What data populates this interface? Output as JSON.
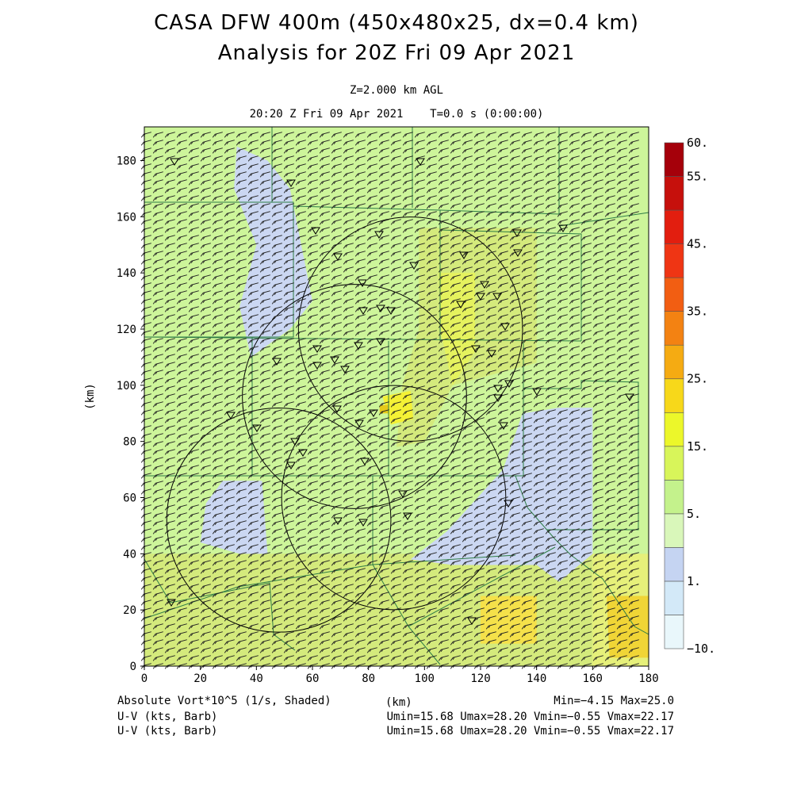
{
  "header": {
    "title_line1": "CASA DFW 400m (450x480x25, dx=0.4 km)",
    "title_line2": "Analysis for 20Z Fri 09 Apr 2021",
    "level": "Z=2.000 km AGL",
    "valid_time": "20:20 Z Fri 09 Apr 2021    T=0.0 s (0:00:00)"
  },
  "map": {
    "x_axis_label": "(km)",
    "y_axis_label": "(km)",
    "x_range": [
      0,
      180
    ],
    "y_range": [
      0,
      192
    ],
    "x_ticks": [
      "0",
      "20",
      "40",
      "60",
      "80",
      "100",
      "120",
      "140",
      "160",
      "180"
    ],
    "y_ticks": [
      "0",
      "20",
      "40",
      "60",
      "80",
      "100",
      "120",
      "140",
      "160",
      "180"
    ],
    "background_color": "#cdf59a",
    "radar_rings_km": [
      {
        "cx": 95,
        "cy": 120,
        "r": 40
      },
      {
        "cx": 75,
        "cy": 96,
        "r": 40
      },
      {
        "cx": 89,
        "cy": 60,
        "r": 40
      },
      {
        "cx": 48,
        "cy": 52,
        "r": 40
      }
    ],
    "shading_regions": [
      {
        "color": "#d4ea7c",
        "points": [
          [
            98,
            156
          ],
          [
            140,
            156
          ],
          [
            140,
            108
          ],
          [
            110,
            100
          ],
          [
            100,
            80
          ],
          [
            90,
            78
          ],
          [
            92,
            100
          ],
          [
            98,
            120
          ]
        ]
      },
      {
        "color": "#e5f25e",
        "points": [
          [
            105,
            140
          ],
          [
            118,
            140
          ],
          [
            118,
            112
          ],
          [
            110,
            100
          ],
          [
            106,
            118
          ]
        ]
      },
      {
        "color": "#f4f135",
        "points": [
          [
            85,
            96
          ],
          [
            95,
            98
          ],
          [
            96,
            88
          ],
          [
            88,
            86
          ]
        ]
      },
      {
        "color": "#e6c91a",
        "points": [
          [
            84,
            93
          ],
          [
            87,
            93
          ],
          [
            87,
            90
          ],
          [
            84,
            90
          ]
        ]
      },
      {
        "color": "#d4ea7c",
        "points": [
          [
            0,
            40
          ],
          [
            180,
            40
          ],
          [
            180,
            0
          ],
          [
            0,
            0
          ]
        ]
      },
      {
        "color": "#cbd7f2",
        "points": [
          [
            33,
            185
          ],
          [
            44,
            180
          ],
          [
            52,
            170
          ],
          [
            56,
            150
          ],
          [
            60,
            130
          ],
          [
            52,
            120
          ],
          [
            38,
            110
          ],
          [
            34,
            128
          ],
          [
            40,
            150
          ],
          [
            32,
            170
          ]
        ]
      },
      {
        "color": "#cbd7f2",
        "points": [
          [
            148,
            92
          ],
          [
            160,
            92
          ],
          [
            160,
            40
          ],
          [
            148,
            30
          ],
          [
            140,
            36
          ],
          [
            110,
            36
          ],
          [
            95,
            38
          ],
          [
            108,
            48
          ],
          [
            128,
            70
          ],
          [
            135,
            90
          ]
        ]
      },
      {
        "color": "#cbd7f2",
        "points": [
          [
            28,
            66
          ],
          [
            42,
            66
          ],
          [
            44,
            40
          ],
          [
            34,
            40
          ],
          [
            20,
            44
          ],
          [
            22,
            58
          ]
        ]
      },
      {
        "color": "#e6f07a",
        "points": [
          [
            160,
            40
          ],
          [
            180,
            40
          ],
          [
            180,
            0
          ],
          [
            160,
            0
          ]
        ]
      },
      {
        "color": "#f0d536",
        "points": [
          [
            165,
            25
          ],
          [
            180,
            25
          ],
          [
            180,
            3
          ],
          [
            166,
            3
          ]
        ]
      },
      {
        "color": "#f5e14a",
        "points": [
          [
            120,
            25
          ],
          [
            140,
            25
          ],
          [
            140,
            8
          ],
          [
            120,
            8
          ]
        ]
      }
    ],
    "wind_barb_direction_deg": 255,
    "colorbar": {
      "colors": [
        "#e9f7fb",
        "#d3e9f8",
        "#c5d4f2",
        "#d9f7ba",
        "#c4f28c",
        "#d8f55a",
        "#ecf72a",
        "#f7d81a",
        "#f5ab12",
        "#f38212",
        "#f25e12",
        "#ef3514",
        "#e21e0f",
        "#c6100c",
        "#a5000a"
      ],
      "labels": [
        {
          "text": "60.",
          "index": 15
        },
        {
          "text": "55.",
          "index": 14
        },
        {
          "text": "45.",
          "index": 12
        },
        {
          "text": "35.",
          "index": 10
        },
        {
          "text": "25.",
          "index": 8
        },
        {
          "text": "15.",
          "index": 6
        },
        {
          "text": "5.",
          "index": 4
        },
        {
          "text": "1.",
          "index": 2
        },
        {
          "text": "−10.",
          "index": 0
        }
      ]
    }
  },
  "footer": {
    "left1": "Absolute Vort*10^5 (1/s, Shaded)",
    "left2": "U-V (kts, Barb)",
    "left3": "U-V (kts, Barb)",
    "center": "(km)",
    "right1": "Min=−4.15 Max=25.0",
    "right2": "Umin=15.68 Umax=28.20 Vmin=−0.55 Vmax=22.17",
    "right3": "Umin=15.68 Umax=28.20 Vmin=−0.55 Vmax=22.17"
  }
}
